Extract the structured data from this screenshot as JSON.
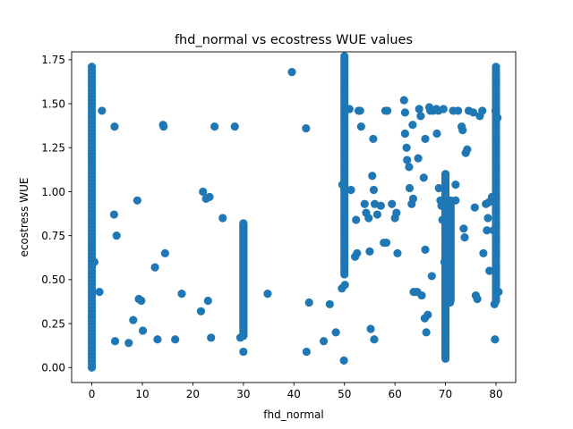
{
  "chart_data": {
    "type": "scatter",
    "title": "fhd_normal vs ecostress WUE values",
    "xlabel": "fhd_normal",
    "ylabel": "ecostress WUE",
    "xlim": [
      -4.0,
      83.9
    ],
    "ylim": [
      -0.085,
      1.795
    ],
    "xticks": [
      0,
      10,
      20,
      30,
      40,
      50,
      60,
      70,
      80
    ],
    "yticks": [
      0.0,
      0.25,
      0.5,
      0.75,
      1.0,
      1.25,
      1.5,
      1.75
    ],
    "ytick_labels": [
      "0.00",
      "0.25",
      "0.50",
      "0.75",
      "1.00",
      "1.25",
      "1.50",
      "1.75"
    ],
    "grid": false,
    "color": "#1f77b4",
    "vertical_bands": [
      {
        "x": 0,
        "y_min": 0.0,
        "y_max": 1.71
      },
      {
        "x": 30,
        "y_min": 0.18,
        "y_max": 0.82
      },
      {
        "x": 50,
        "y_min": 0.53,
        "y_max": 1.77
      },
      {
        "x": 70,
        "y_min": 0.05,
        "y_max": 1.1
      },
      {
        "x": 71,
        "y_min": 0.38,
        "y_max": 0.95
      },
      {
        "x": 80,
        "y_min": 0.38,
        "y_max": 1.71
      }
    ],
    "points": [
      [
        2.0,
        1.46
      ],
      [
        4.5,
        1.37
      ],
      [
        4.4,
        0.87
      ],
      [
        4.9,
        0.75
      ],
      [
        1.5,
        0.43
      ],
      [
        0.5,
        0.6
      ],
      [
        4.6,
        0.15
      ],
      [
        7.3,
        0.14
      ],
      [
        8.2,
        0.27
      ],
      [
        9.0,
        0.95
      ],
      [
        9.3,
        0.39
      ],
      [
        9.8,
        0.38
      ],
      [
        10.1,
        0.21
      ],
      [
        12.5,
        0.57
      ],
      [
        13.0,
        0.16
      ],
      [
        14.1,
        1.38
      ],
      [
        14.2,
        1.37
      ],
      [
        14.5,
        0.65
      ],
      [
        16.5,
        0.16
      ],
      [
        17.8,
        0.42
      ],
      [
        21.6,
        0.32
      ],
      [
        22.0,
        1.0
      ],
      [
        22.6,
        0.96
      ],
      [
        23.3,
        0.97
      ],
      [
        23.0,
        0.38
      ],
      [
        23.6,
        0.17
      ],
      [
        24.3,
        1.37
      ],
      [
        25.9,
        0.85
      ],
      [
        28.3,
        1.37
      ],
      [
        29.4,
        0.17
      ],
      [
        30.0,
        0.09
      ],
      [
        34.8,
        0.42
      ],
      [
        39.6,
        1.68
      ],
      [
        42.4,
        1.36
      ],
      [
        42.5,
        0.09
      ],
      [
        43.0,
        0.37
      ],
      [
        47.1,
        0.36
      ],
      [
        45.9,
        0.15
      ],
      [
        48.3,
        0.2
      ],
      [
        49.5,
        0.45
      ],
      [
        49.6,
        1.04
      ],
      [
        49.9,
        0.04
      ],
      [
        50.1,
        0.47
      ],
      [
        51.0,
        1.47
      ],
      [
        51.3,
        1.01
      ],
      [
        52.3,
        0.84
      ],
      [
        52.1,
        0.63
      ],
      [
        52.5,
        0.65
      ],
      [
        52.8,
        1.46
      ],
      [
        53.1,
        1.46
      ],
      [
        53.3,
        1.37
      ],
      [
        54.0,
        0.93
      ],
      [
        54.3,
        0.88
      ],
      [
        54.8,
        0.85
      ],
      [
        55.0,
        0.66
      ],
      [
        55.2,
        0.22
      ],
      [
        55.5,
        1.09
      ],
      [
        55.7,
        1.3
      ],
      [
        55.8,
        1.01
      ],
      [
        55.9,
        0.16
      ],
      [
        56.0,
        0.93
      ],
      [
        56.5,
        0.87
      ],
      [
        57.2,
        0.92
      ],
      [
        57.8,
        0.71
      ],
      [
        58.1,
        1.46
      ],
      [
        58.3,
        0.71
      ],
      [
        58.5,
        1.46
      ],
      [
        59.4,
        0.93
      ],
      [
        60.0,
        0.85
      ],
      [
        60.3,
        0.88
      ],
      [
        60.5,
        0.65
      ],
      [
        61.8,
        1.52
      ],
      [
        62.0,
        1.45
      ],
      [
        62.0,
        1.33
      ],
      [
        62.3,
        1.25
      ],
      [
        62.4,
        1.18
      ],
      [
        62.8,
        1.14
      ],
      [
        62.9,
        1.02
      ],
      [
        63.3,
        0.93
      ],
      [
        63.5,
        1.38
      ],
      [
        63.6,
        0.96
      ],
      [
        63.7,
        0.43
      ],
      [
        64.4,
        0.43
      ],
      [
        64.6,
        1.19
      ],
      [
        64.8,
        1.47
      ],
      [
        65.1,
        1.43
      ],
      [
        65.3,
        0.41
      ],
      [
        65.7,
        1.08
      ],
      [
        65.9,
        0.28
      ],
      [
        66.0,
        1.3
      ],
      [
        66.0,
        0.67
      ],
      [
        66.2,
        0.2
      ],
      [
        66.5,
        0.3
      ],
      [
        66.8,
        1.48
      ],
      [
        67.0,
        1.46
      ],
      [
        67.3,
        0.52
      ],
      [
        67.6,
        1.46
      ],
      [
        68.2,
        1.47
      ],
      [
        68.3,
        1.33
      ],
      [
        68.6,
        1.46
      ],
      [
        68.7,
        1.02
      ],
      [
        69.0,
        0.95
      ],
      [
        69.2,
        0.92
      ],
      [
        69.4,
        0.84
      ],
      [
        69.6,
        1.47
      ],
      [
        69.8,
        0.6
      ],
      [
        70.9,
        0.37
      ],
      [
        71.5,
        1.46
      ],
      [
        72.0,
        1.04
      ],
      [
        72.0,
        0.95
      ],
      [
        72.5,
        1.46
      ],
      [
        73.2,
        1.37
      ],
      [
        73.4,
        1.35
      ],
      [
        73.6,
        0.79
      ],
      [
        73.8,
        0.74
      ],
      [
        74.0,
        1.22
      ],
      [
        74.3,
        1.24
      ],
      [
        74.6,
        1.46
      ],
      [
        75.5,
        1.45
      ],
      [
        75.8,
        0.91
      ],
      [
        76.0,
        0.41
      ],
      [
        76.3,
        0.39
      ],
      [
        76.8,
        1.43
      ],
      [
        77.5,
        0.65
      ],
      [
        77.3,
        1.46
      ],
      [
        78.0,
        0.93
      ],
      [
        78.4,
        0.85
      ],
      [
        78.2,
        0.78
      ],
      [
        78.7,
        0.55
      ],
      [
        78.6,
        0.94
      ],
      [
        79.2,
        0.97
      ],
      [
        79.5,
        0.78
      ],
      [
        79.7,
        0.36
      ],
      [
        79.8,
        0.16
      ],
      [
        79.9,
        1.46
      ],
      [
        80.3,
        1.42
      ],
      [
        80.5,
        0.43
      ]
    ]
  }
}
